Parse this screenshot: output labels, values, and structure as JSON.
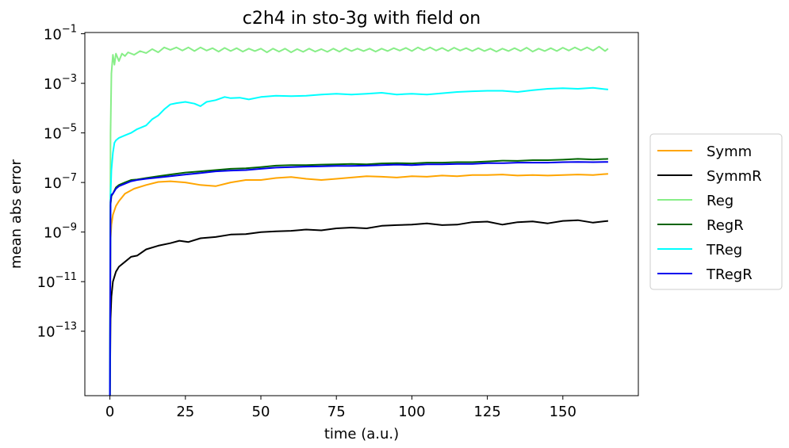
{
  "chart_data": {
    "type": "line",
    "title": "c2h4 in sto-3g with field on",
    "xlabel": "time (a.u.)",
    "ylabel": "mean abs error",
    "xlim": [
      -8.3,
      175
    ],
    "ylim_log10": [
      -15.6,
      -0.95
    ],
    "y_scale": "log",
    "grid": false,
    "legend_position": "outside-right",
    "x_ticks": [
      0,
      25,
      50,
      75,
      100,
      125,
      150
    ],
    "y_tick_exponents": [
      -1,
      -3,
      -5,
      -7,
      -9,
      -11,
      -13
    ],
    "y_tick_base": "10",
    "series": [
      {
        "name": "Symm",
        "color": "#FFA500",
        "x": [
          0,
          0.2,
          0.5,
          1,
          2,
          3,
          5,
          8,
          12,
          16,
          20,
          25,
          30,
          35,
          40,
          45,
          50,
          55,
          60,
          65,
          70,
          75,
          80,
          85,
          90,
          95,
          100,
          105,
          110,
          115,
          120,
          125,
          130,
          135,
          140,
          145,
          150,
          155,
          160,
          165
        ],
        "log10_y": [
          -15.6,
          -9.3,
          -8.7,
          -8.3,
          -7.95,
          -7.75,
          -7.45,
          -7.25,
          -7.1,
          -6.98,
          -6.95,
          -7.0,
          -7.1,
          -7.15,
          -7.0,
          -6.9,
          -6.9,
          -6.82,
          -6.78,
          -6.85,
          -6.9,
          -6.85,
          -6.8,
          -6.75,
          -6.77,
          -6.8,
          -6.75,
          -6.77,
          -6.72,
          -6.75,
          -6.7,
          -6.7,
          -6.68,
          -6.72,
          -6.7,
          -6.72,
          -6.7,
          -6.68,
          -6.7,
          -6.65
        ]
      },
      {
        "name": "SymmR",
        "color": "#000000",
        "x": [
          0,
          0.2,
          0.5,
          1,
          2,
          3,
          5,
          7,
          9,
          12,
          16,
          20,
          23,
          26,
          30,
          35,
          40,
          45,
          50,
          55,
          60,
          65,
          70,
          75,
          80,
          85,
          90,
          95,
          100,
          105,
          110,
          115,
          120,
          125,
          130,
          135,
          140,
          145,
          150,
          155,
          160,
          165
        ],
        "log10_y": [
          -15.6,
          -12.5,
          -11.6,
          -11.0,
          -10.6,
          -10.4,
          -10.2,
          -10.0,
          -9.95,
          -9.7,
          -9.55,
          -9.45,
          -9.35,
          -9.4,
          -9.25,
          -9.2,
          -9.1,
          -9.08,
          -9.0,
          -8.97,
          -8.95,
          -8.9,
          -8.93,
          -8.85,
          -8.82,
          -8.85,
          -8.75,
          -8.72,
          -8.7,
          -8.65,
          -8.72,
          -8.7,
          -8.6,
          -8.58,
          -8.7,
          -8.6,
          -8.57,
          -8.65,
          -8.55,
          -8.52,
          -8.62,
          -8.55
        ]
      },
      {
        "name": "Reg",
        "color": "#88EE88",
        "x": [
          0,
          0.2,
          0.5,
          1,
          1.5,
          2,
          3,
          4,
          5,
          6,
          8,
          10,
          12,
          14,
          16,
          18,
          20,
          22,
          24,
          26,
          28,
          30,
          32,
          34,
          36,
          38,
          40,
          42,
          44,
          46,
          48,
          50,
          52,
          54,
          56,
          58,
          60,
          62,
          64,
          66,
          68,
          70,
          72,
          74,
          76,
          78,
          80,
          82,
          84,
          86,
          88,
          90,
          92,
          94,
          96,
          98,
          100,
          102,
          104,
          106,
          108,
          110,
          112,
          114,
          116,
          118,
          120,
          122,
          124,
          126,
          128,
          130,
          132,
          134,
          136,
          138,
          140,
          142,
          144,
          146,
          148,
          150,
          152,
          154,
          156,
          158,
          160,
          162,
          164,
          165
        ],
        "log10_y": [
          -15.6,
          -5.0,
          -2.6,
          -1.85,
          -2.25,
          -1.8,
          -2.1,
          -1.8,
          -1.9,
          -1.75,
          -1.85,
          -1.7,
          -1.78,
          -1.62,
          -1.75,
          -1.55,
          -1.65,
          -1.55,
          -1.68,
          -1.55,
          -1.7,
          -1.55,
          -1.68,
          -1.58,
          -1.72,
          -1.57,
          -1.7,
          -1.58,
          -1.72,
          -1.6,
          -1.7,
          -1.6,
          -1.75,
          -1.6,
          -1.72,
          -1.6,
          -1.75,
          -1.62,
          -1.73,
          -1.6,
          -1.72,
          -1.62,
          -1.73,
          -1.6,
          -1.72,
          -1.58,
          -1.7,
          -1.6,
          -1.7,
          -1.6,
          -1.72,
          -1.6,
          -1.7,
          -1.58,
          -1.68,
          -1.57,
          -1.7,
          -1.55,
          -1.67,
          -1.55,
          -1.68,
          -1.57,
          -1.7,
          -1.56,
          -1.68,
          -1.58,
          -1.7,
          -1.58,
          -1.7,
          -1.6,
          -1.72,
          -1.6,
          -1.7,
          -1.58,
          -1.7,
          -1.56,
          -1.72,
          -1.6,
          -1.7,
          -1.58,
          -1.7,
          -1.56,
          -1.68,
          -1.55,
          -1.67,
          -1.55,
          -1.68,
          -1.52,
          -1.7,
          -1.6
        ]
      },
      {
        "name": "RegR",
        "color": "#006400",
        "x": [
          0,
          0.2,
          0.5,
          1,
          2,
          3,
          5,
          7,
          9,
          12,
          16,
          20,
          25,
          30,
          35,
          40,
          45,
          50,
          55,
          60,
          65,
          70,
          75,
          80,
          85,
          90,
          95,
          100,
          105,
          110,
          115,
          120,
          125,
          130,
          135,
          140,
          145,
          150,
          155,
          160,
          165
        ],
        "log10_y": [
          -15.6,
          -7.9,
          -7.55,
          -7.45,
          -7.2,
          -7.1,
          -7.0,
          -6.9,
          -6.88,
          -6.82,
          -6.75,
          -6.68,
          -6.6,
          -6.55,
          -6.5,
          -6.45,
          -6.43,
          -6.38,
          -6.32,
          -6.3,
          -6.3,
          -6.28,
          -6.27,
          -6.25,
          -6.27,
          -6.23,
          -6.22,
          -6.23,
          -6.2,
          -6.2,
          -6.18,
          -6.18,
          -6.15,
          -6.12,
          -6.13,
          -6.1,
          -6.1,
          -6.08,
          -6.05,
          -6.07,
          -6.05
        ]
      },
      {
        "name": "TReg",
        "color": "#00FFFF",
        "x": [
          0,
          0.2,
          0.5,
          1,
          1.5,
          2,
          3,
          4,
          5,
          7,
          9,
          12,
          14,
          16,
          18,
          20,
          22,
          25,
          28,
          30,
          32,
          35,
          38,
          40,
          43,
          46,
          50,
          55,
          60,
          65,
          70,
          75,
          80,
          85,
          90,
          95,
          100,
          105,
          110,
          115,
          120,
          125,
          130,
          135,
          140,
          145,
          150,
          155,
          160,
          165
        ],
        "log10_y": [
          -15.6,
          -7.5,
          -6.5,
          -5.8,
          -5.4,
          -5.3,
          -5.2,
          -5.15,
          -5.1,
          -5.0,
          -4.85,
          -4.7,
          -4.45,
          -4.3,
          -4.05,
          -3.85,
          -3.8,
          -3.75,
          -3.82,
          -3.92,
          -3.75,
          -3.68,
          -3.55,
          -3.6,
          -3.58,
          -3.65,
          -3.55,
          -3.5,
          -3.52,
          -3.5,
          -3.45,
          -3.42,
          -3.45,
          -3.42,
          -3.38,
          -3.45,
          -3.42,
          -3.45,
          -3.4,
          -3.35,
          -3.32,
          -3.3,
          -3.3,
          -3.35,
          -3.28,
          -3.22,
          -3.2,
          -3.22,
          -3.18,
          -3.25
        ]
      },
      {
        "name": "TRegR",
        "color": "#0000EE",
        "x": [
          0,
          0.2,
          0.5,
          1,
          2,
          3,
          5,
          7,
          9,
          12,
          16,
          20,
          25,
          30,
          35,
          40,
          45,
          50,
          55,
          60,
          65,
          70,
          75,
          80,
          85,
          90,
          95,
          100,
          105,
          110,
          115,
          120,
          125,
          130,
          135,
          140,
          145,
          150,
          155,
          160,
          165
        ],
        "log10_y": [
          -15.6,
          -7.8,
          -7.5,
          -7.45,
          -7.25,
          -7.15,
          -7.05,
          -6.95,
          -6.9,
          -6.85,
          -6.8,
          -6.75,
          -6.68,
          -6.62,
          -6.55,
          -6.52,
          -6.5,
          -6.45,
          -6.4,
          -6.38,
          -6.36,
          -6.35,
          -6.33,
          -6.33,
          -6.32,
          -6.3,
          -6.28,
          -6.3,
          -6.27,
          -6.27,
          -6.25,
          -6.25,
          -6.22,
          -6.22,
          -6.2,
          -6.2,
          -6.2,
          -6.18,
          -6.17,
          -6.18,
          -6.17
        ]
      }
    ]
  }
}
